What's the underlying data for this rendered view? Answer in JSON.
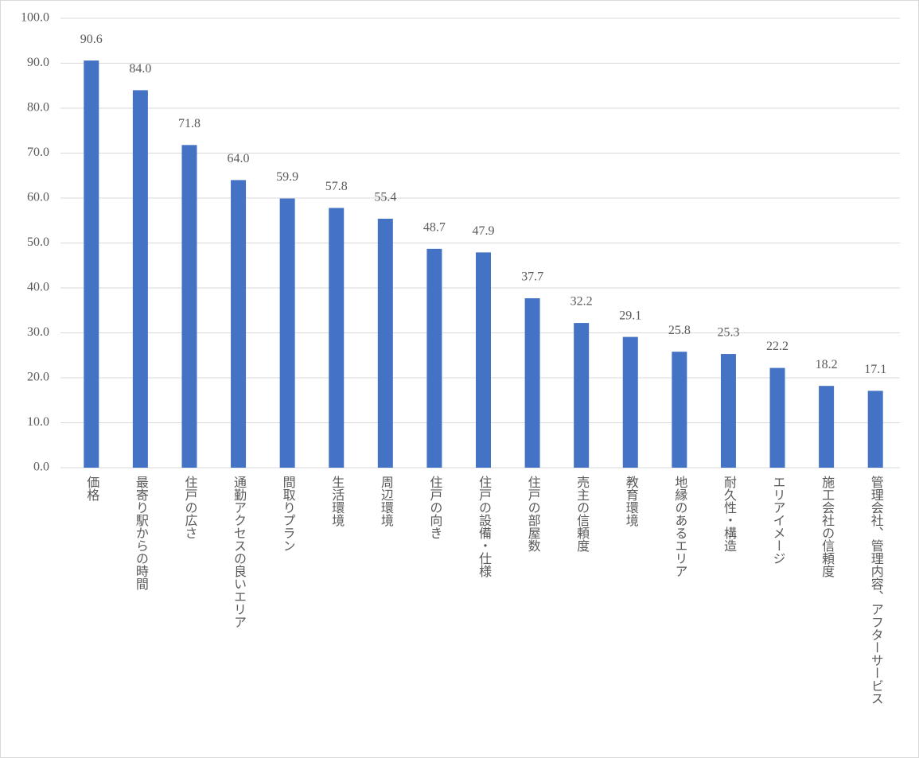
{
  "chart_data": {
    "type": "bar",
    "categories": [
      "価格",
      "最寄り駅からの時間",
      "住戸の広さ",
      "通勤アクセスの良いエリア",
      "間取りプラン",
      "生活環境",
      "周辺環境",
      "住戸の向き",
      "住戸の設備・仕様",
      "住戸の部屋数",
      "売主の信頼度",
      "教育環境",
      "地縁のあるエリア",
      "耐久性・構造",
      "エリアイメージ",
      "施工会社の信頼度",
      "管理会社、管理内容、アフターサービス"
    ],
    "values": [
      90.6,
      84.0,
      71.8,
      64.0,
      59.9,
      57.8,
      55.4,
      48.7,
      47.9,
      37.7,
      32.2,
      29.1,
      25.8,
      25.3,
      22.2,
      18.2,
      17.1
    ],
    "value_labels": [
      "90.6",
      "84.0",
      "71.8",
      "64.0",
      "59.9",
      "57.8",
      "55.4",
      "48.7",
      "47.9",
      "37.7",
      "32.2",
      "29.1",
      "25.8",
      "25.3",
      "22.2",
      "18.2",
      "17.1"
    ],
    "color": "#4472c4",
    "ylim": [
      0,
      100
    ],
    "yticks": [
      {
        "value": 0,
        "label": "0.0"
      },
      {
        "value": 10,
        "label": "10.0"
      },
      {
        "value": 20,
        "label": "20.0"
      },
      {
        "value": 30,
        "label": "30.0"
      },
      {
        "value": 40,
        "label": "40.0"
      },
      {
        "value": 50,
        "label": "50.0"
      },
      {
        "value": 60,
        "label": "60.0"
      },
      {
        "value": 70,
        "label": "70.0"
      },
      {
        "value": 80,
        "label": "80.0"
      },
      {
        "value": 90,
        "label": "90.0"
      },
      {
        "value": 100,
        "label": "100.0"
      }
    ],
    "grid": true
  }
}
